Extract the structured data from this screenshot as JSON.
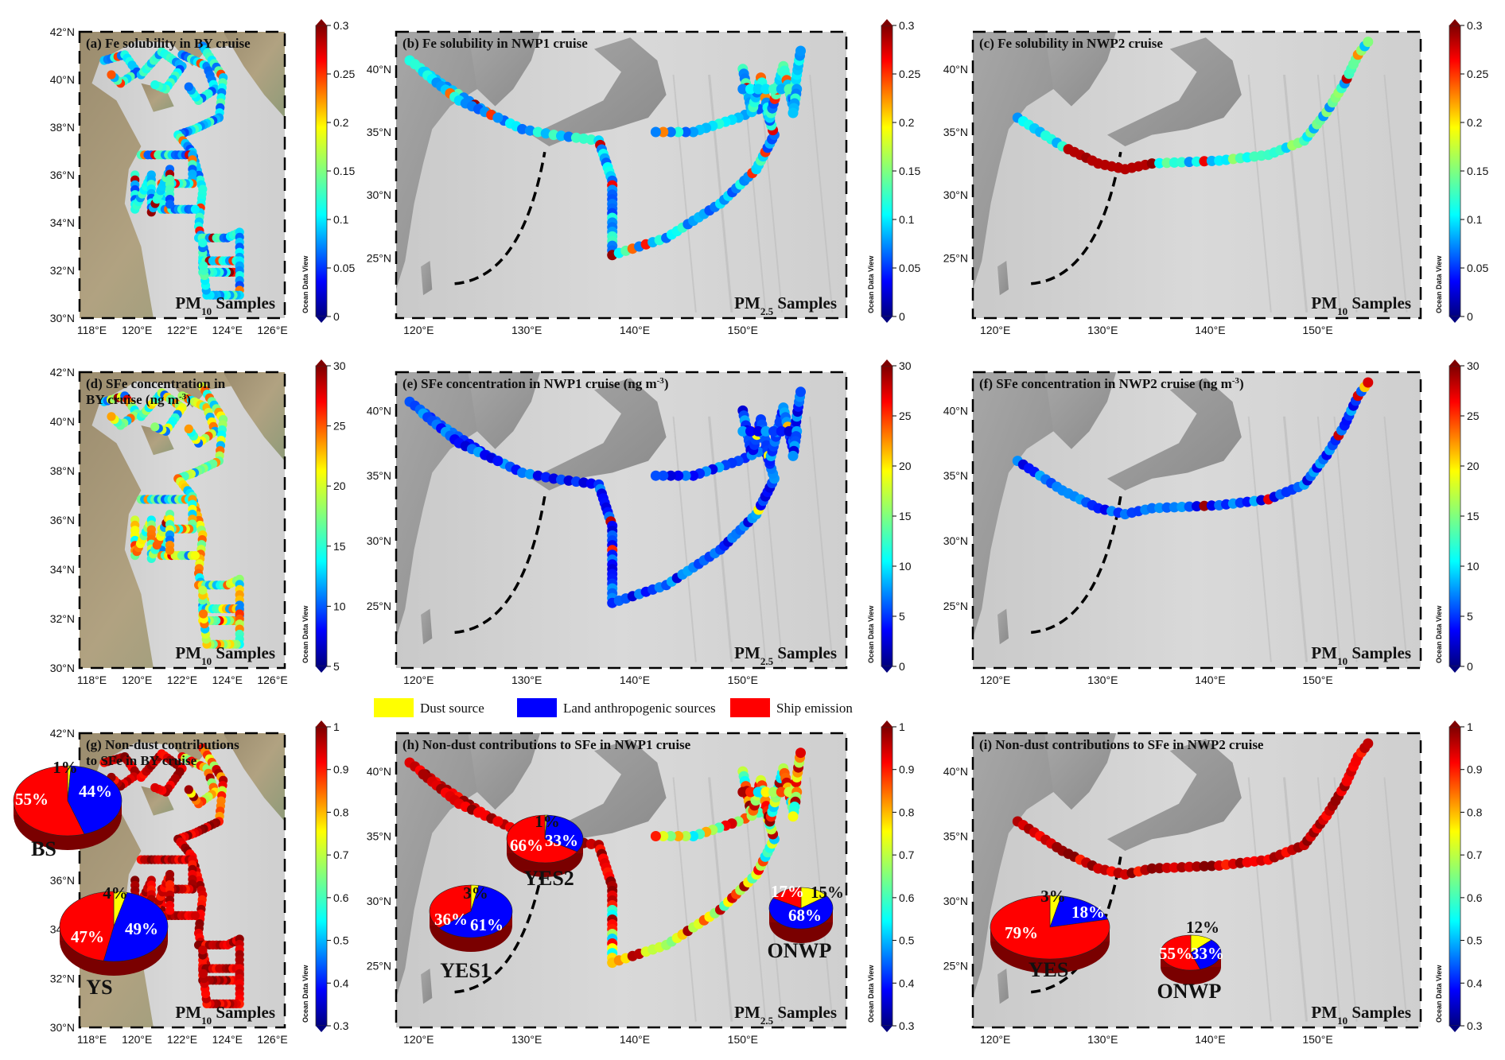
{
  "panels": [
    {
      "id": "a",
      "title_lines": [
        "(a) Fe solubility in BY cruise"
      ],
      "pm": "PM",
      "pm_sub": "10",
      "pm_tail": " Samples",
      "map": "BY",
      "cb_ticks": [
        "0.3",
        "0.25",
        "0.2",
        "0.15",
        "0.1",
        "0.05",
        "0"
      ],
      "cb_min": 0,
      "cb_max": 0.3,
      "field": "sol"
    },
    {
      "id": "b",
      "title_lines": [
        "(b) Fe solubility in NWP1 cruise"
      ],
      "pm": "PM",
      "pm_sub": "2.5",
      "pm_tail": " Samples",
      "map": "NWP1",
      "cb_ticks": [
        "0.3",
        "0.25",
        "0.2",
        "0.15",
        "0.1",
        "0.05",
        "0"
      ],
      "cb_min": 0,
      "cb_max": 0.3,
      "field": "sol"
    },
    {
      "id": "c",
      "title_lines": [
        "(c) Fe solubility in NWP2 cruise"
      ],
      "pm": "PM",
      "pm_sub": "10",
      "pm_tail": " Samples",
      "map": "NWP2",
      "cb_ticks": [
        "0.3",
        "0.25",
        "0.2",
        "0.15",
        "0.1",
        "0.05",
        "0"
      ],
      "cb_min": 0,
      "cb_max": 0.3,
      "field": "sol"
    },
    {
      "id": "d",
      "title_lines": [
        "(d) SFe concentration in",
        "BY cruise (ng m"
      ],
      "title_sup": "-3",
      "title_close": ")",
      "pm": "PM",
      "pm_sub": "10",
      "pm_tail": " Samples",
      "map": "BY",
      "cb_ticks": [
        "30",
        "25",
        "20",
        "15",
        "10",
        "5"
      ],
      "cb_min": 5,
      "cb_max": 30,
      "field": "conc"
    },
    {
      "id": "e",
      "title_lines": [
        "(e) SFe concentration in NWP1 cruise (ng m"
      ],
      "title_sup": "-3",
      "title_close": ")",
      "pm": "PM",
      "pm_sub": "2.5",
      "pm_tail": " Samples",
      "map": "NWP1",
      "cb_ticks": [
        "30",
        "25",
        "20",
        "15",
        "10",
        "5",
        "0"
      ],
      "cb_min": 0,
      "cb_max": 30,
      "field": "conc"
    },
    {
      "id": "f",
      "title_lines": [
        "(f) SFe concentration in NWP2 cruise (ng m"
      ],
      "title_sup": "-3",
      "title_close": ")",
      "pm": "PM",
      "pm_sub": "10",
      "pm_tail": " Samples",
      "map": "NWP2",
      "cb_ticks": [
        "30",
        "25",
        "20",
        "15",
        "10",
        "5",
        "0"
      ],
      "cb_min": 0,
      "cb_max": 30,
      "field": "conc"
    },
    {
      "id": "g",
      "title_lines": [
        "(g) Non-dust contributions",
        "to SFe in BY cruise"
      ],
      "pm": "PM",
      "pm_sub": "10",
      "pm_tail": " Samples",
      "map": "BY",
      "cb_ticks": [
        "1",
        "0.9",
        "0.8",
        "0.7",
        "0.6",
        "0.5",
        "0.4",
        "0.3"
      ],
      "cb_min": 0.3,
      "cb_max": 1,
      "field": "nd"
    },
    {
      "id": "h",
      "title_lines": [
        "(h) Non-dust contributions to SFe in NWP1 cruise"
      ],
      "pm": "PM",
      "pm_sub": "2.5",
      "pm_tail": " Samples",
      "map": "NWP1",
      "cb_ticks": [
        "1",
        "0.9",
        "0.8",
        "0.7",
        "0.6",
        "0.5",
        "0.4",
        "0.3"
      ],
      "cb_min": 0.3,
      "cb_max": 1,
      "field": "nd"
    },
    {
      "id": "i",
      "title_lines": [
        "(i) Non-dust contributions to SFe in NWP2 cruise"
      ],
      "pm": "PM",
      "pm_sub": "10",
      "pm_tail": " Samples",
      "map": "NWP2",
      "cb_ticks": [
        "1",
        "0.9",
        "0.8",
        "0.7",
        "0.6",
        "0.5",
        "0.4",
        "0.3"
      ],
      "cb_min": 0.3,
      "cb_max": 1,
      "field": "nd"
    }
  ],
  "axes": {
    "BY": {
      "lon": [
        "118°E",
        "120°E",
        "122°E",
        "124°E",
        "126°E"
      ],
      "lat": [
        "42°N",
        "40°N",
        "38°N",
        "36°N",
        "34°N",
        "32°N",
        "30°N"
      ]
    },
    "NWP": {
      "lon": [
        "120°E",
        "130°E",
        "140°E",
        "150°E"
      ],
      "lat": [
        "40°N",
        "35°N",
        "30°N",
        "25°N"
      ]
    }
  },
  "watermark": "Ocean Data View",
  "legend": [
    {
      "label": "Dust source",
      "color": "#ffff00"
    },
    {
      "label": "Land anthropogenic sources",
      "color": "#0000ff"
    },
    {
      "label": "Ship emission",
      "color": "#ff0000"
    }
  ],
  "pies": [
    {
      "panel": "g",
      "region": "BS",
      "values": {
        "dust": 1,
        "land": 44,
        "ship": 55
      },
      "labels": [
        "1%",
        "44%",
        "55%"
      ]
    },
    {
      "panel": "g",
      "region": "YS",
      "values": {
        "dust": 4,
        "land": 49,
        "ship": 47
      },
      "labels": [
        "4%",
        "49%",
        "47%"
      ]
    },
    {
      "panel": "h",
      "region": "YES2",
      "values": {
        "dust": 1,
        "land": 33,
        "ship": 66
      },
      "labels": [
        "1%",
        "33%",
        "66%"
      ]
    },
    {
      "panel": "h",
      "region": "YES1",
      "values": {
        "dust": 3,
        "land": 61,
        "ship": 36
      },
      "labels": [
        "3%",
        "61%",
        "36%"
      ]
    },
    {
      "panel": "h",
      "region": "ONWP",
      "values": {
        "dust": 15,
        "land": 68,
        "ship": 17
      },
      "labels": [
        "15%",
        "68%",
        "17%"
      ]
    },
    {
      "panel": "i",
      "region": "YES",
      "values": {
        "dust": 3,
        "land": 18,
        "ship": 79
      },
      "labels": [
        "3%",
        "18%",
        "79%"
      ]
    },
    {
      "panel": "i",
      "region": "ONWP",
      "values": {
        "dust": 12,
        "land": 33,
        "ship": 55
      },
      "labels": [
        "12%",
        "33%",
        "55%"
      ]
    }
  ]
}
